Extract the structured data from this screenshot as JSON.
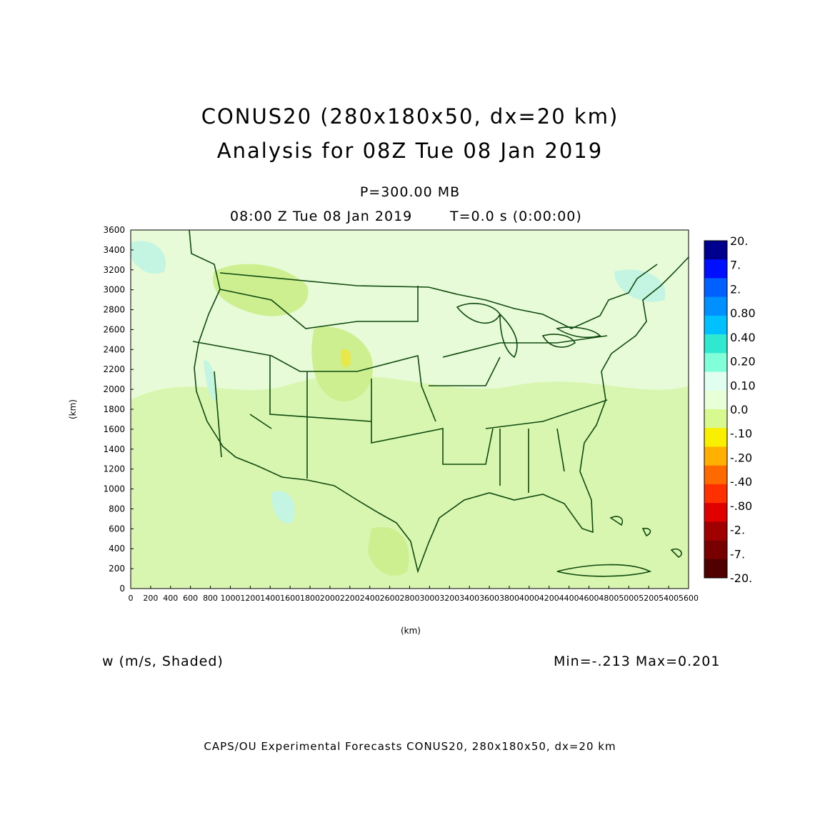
{
  "title": {
    "line1": "CONUS20 (280x180x50, dx=20 km)",
    "line2": "Analysis for 08Z Tue 08 Jan 2019"
  },
  "subtitle": {
    "level": "P=300.00 MB",
    "valid_time": "08:00 Z Tue 08 Jan 2019",
    "time_info": "T=0.0 s (0:00:00)"
  },
  "field_label": "w (m/s, Shaded)",
  "min_max": "Min=-.213 Max=0.201",
  "credit": "CAPS/OU Experimental Forecasts  CONUS20, 280x180x50, dx=20 km",
  "axes": {
    "x_label": "(km)",
    "y_label": "(km)",
    "x_range": [
      0,
      5600
    ],
    "y_range": [
      0,
      3600
    ],
    "x_ticks": [
      "0",
      "200",
      "400",
      "600",
      "800",
      "1000",
      "1200",
      "1400",
      "1600",
      "1800",
      "2000",
      "2200",
      "2400",
      "2600",
      "2800",
      "3000",
      "3200",
      "3400",
      "3600",
      "3800",
      "4000",
      "4200",
      "4400",
      "4600",
      "4800",
      "5000",
      "5200",
      "5400",
      "5600"
    ],
    "y_ticks": [
      "0",
      "200",
      "400",
      "600",
      "800",
      "1000",
      "1200",
      "1400",
      "1600",
      "1800",
      "2000",
      "2200",
      "2400",
      "2600",
      "2800",
      "3000",
      "3200",
      "3400",
      "3600"
    ]
  },
  "colorbar": {
    "labels": [
      "20.",
      "7.",
      "2.",
      "0.80",
      "0.40",
      "0.20",
      "0.10",
      "0.0",
      "-.10",
      "-.20",
      "-.40",
      "-.80",
      "-2.",
      "-7.",
      "-20."
    ],
    "colors": [
      "#00008f",
      "#0010ff",
      "#0060ff",
      "#0090ff",
      "#00c0ff",
      "#30e8d0",
      "#80ffd8",
      "#e0fff0",
      "#e8ffd8",
      "#d8f890",
      "#f8f000",
      "#ffb000",
      "#ff6a00",
      "#ff3000",
      "#e00000",
      "#a00000",
      "#780000",
      "#500000"
    ]
  },
  "colors": {
    "background": "#e8fbd8",
    "light_green": "#d8f6b0",
    "yellow_green": "#cdef90",
    "yellow": "#e8e84a",
    "cyan": "#c4f4e2",
    "map_lines": "#0f4a0f"
  }
}
